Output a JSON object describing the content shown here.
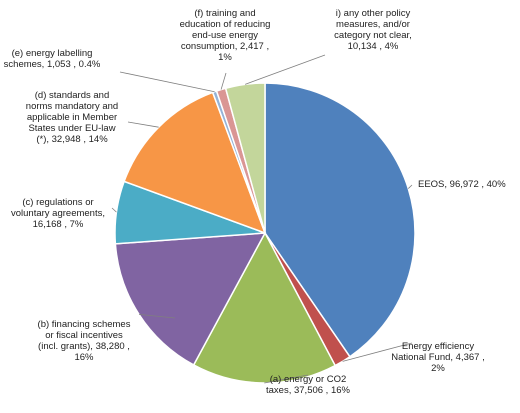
{
  "chart_data": {
    "type": "pie",
    "title": "",
    "start_angle_deg": 0,
    "direction": "clockwise",
    "slices": [
      {
        "label": "EEOS",
        "value": 96972,
        "percent": "40%",
        "color": "#4f81bd",
        "label_lines": [
          "EEOS,  96,972 , 40%"
        ]
      },
      {
        "label": "Energy efficiency National Fund",
        "value": 4367,
        "percent": "2%",
        "color": "#c0504d",
        "label_lines": [
          "Energy efficiency",
          "National Fund,  4,367 ,",
          "2%"
        ]
      },
      {
        "label": "(a) energy or CO2 taxes",
        "value": 37506,
        "percent": "16%",
        "color": "#9bbb59",
        "label_lines": [
          "(a) energy or CO2",
          "taxes,  37,506 , 16%"
        ]
      },
      {
        "label": "(b) financing schemes or fiscal incentives (incl. grants)",
        "value": 38280,
        "percent": "16%",
        "color": "#8064a2",
        "label_lines": [
          "(b) financing schemes",
          "or fiscal incentives",
          "(incl. grants),  38,280 ,",
          "16%"
        ]
      },
      {
        "label": "(c) regulations or voluntary agreements",
        "value": 16168,
        "percent": "7%",
        "color": "#4bacc6",
        "label_lines": [
          "(c) regulations or",
          "voluntary agreements,",
          "16,168 , 7%"
        ]
      },
      {
        "label": "(d) standards and norms mandatory and applicable in Member States under EU-law (*)",
        "value": 32948,
        "percent": "14%",
        "color": "#f79646",
        "label_lines": [
          "(d) standards and",
          "norms mandatory and",
          "applicable in Member",
          "States under EU-law",
          "(*),  32,948 , 14%"
        ]
      },
      {
        "label": "(e) energy labelling schemes",
        "value": 1053,
        "percent": "0.4%",
        "color": "#95b3d7",
        "label_lines": [
          "(e) energy labelling",
          "schemes,  1,053 , 0.4%"
        ]
      },
      {
        "label": "(f) training and education of reducing end-use energy consumption",
        "value": 2417,
        "percent": "1%",
        "color": "#da9694",
        "label_lines": [
          "(f) training and",
          "education of reducing",
          "end-use energy",
          "consumption,  2,417 ,",
          "1%"
        ]
      },
      {
        "label": "i) any other policy measures, and/or category not clear",
        "value": 10134,
        "percent": "4%",
        "color": "#c3d69b",
        "label_lines": [
          "i) any other policy",
          "measures, and/or",
          "category not clear,",
          "10,134 , 4%"
        ]
      }
    ]
  }
}
